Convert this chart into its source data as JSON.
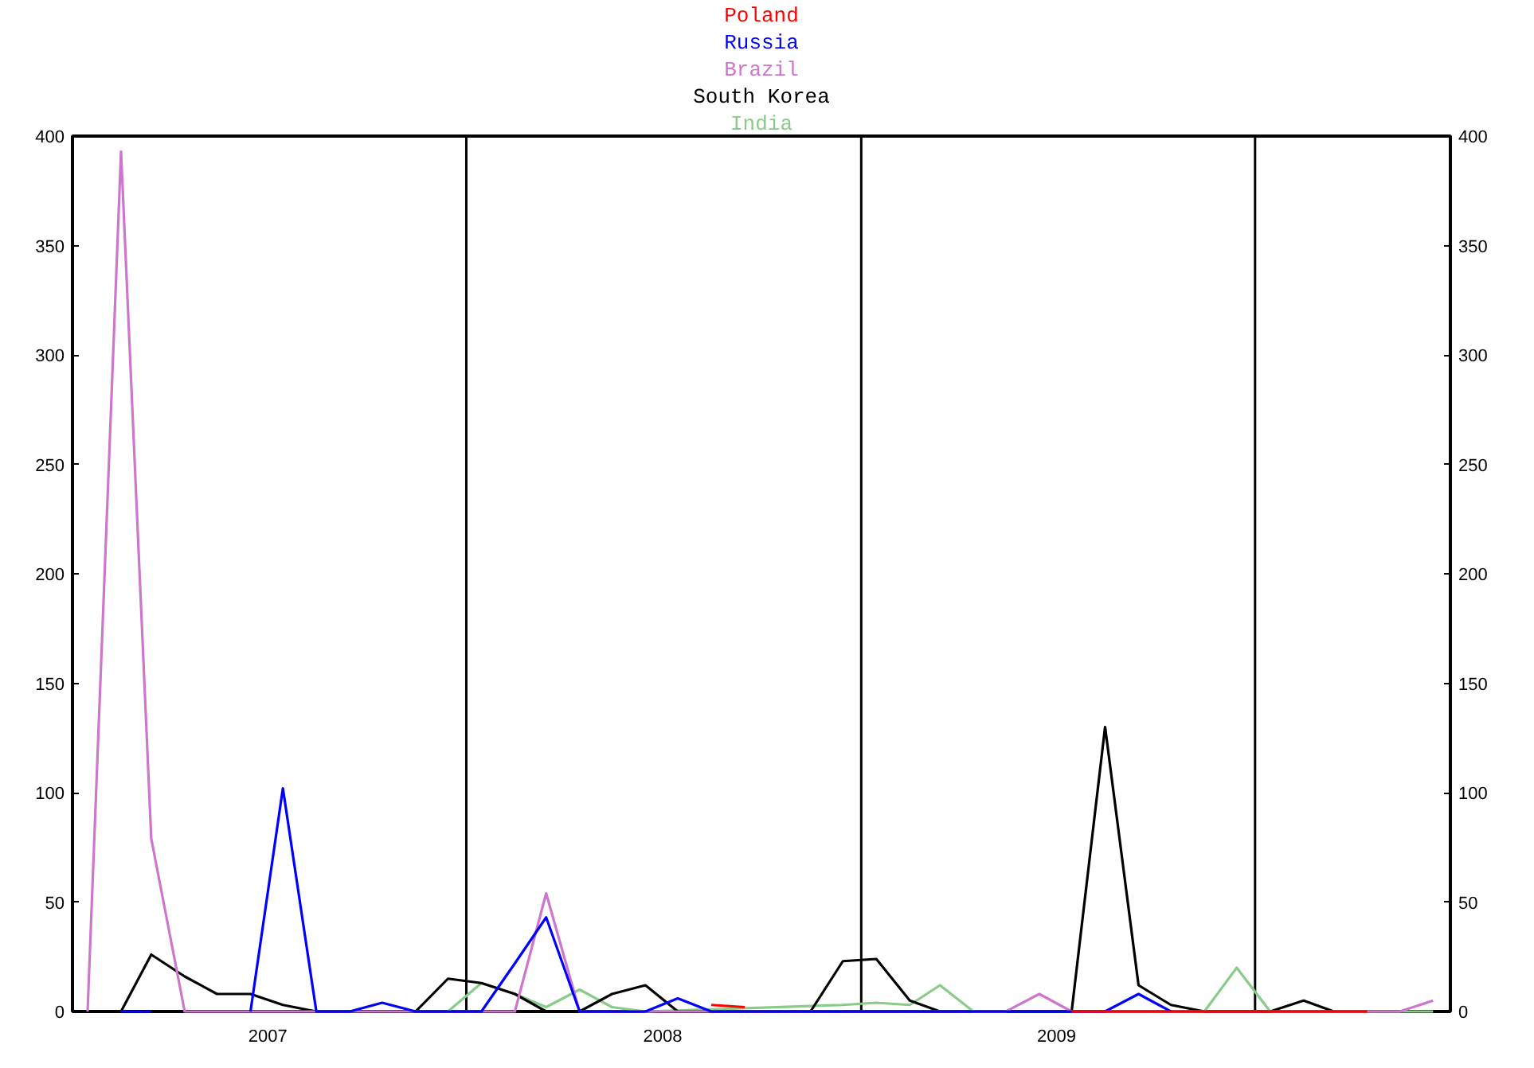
{
  "chart_data": {
    "type": "line",
    "xlim": [
      "2007-01-01",
      "2010-07-01"
    ],
    "xticks": [
      {
        "value": "2007-07-01",
        "label": "2007"
      },
      {
        "value": "2008-07-01",
        "label": "2008"
      },
      {
        "value": "2009-07-01",
        "label": "2009"
      }
    ],
    "ylim": [
      0,
      400
    ],
    "yticks": [
      0,
      50,
      100,
      150,
      200,
      250,
      300,
      350,
      400
    ],
    "y2lim": [
      0,
      400
    ],
    "y2ticks": [
      0,
      50,
      100,
      150,
      200,
      250,
      300,
      350,
      400
    ],
    "grid": false,
    "legend": "top",
    "marker": "none",
    "line_style": "solid",
    "ref_lines": [
      {
        "axis": "x",
        "value": "2008-01-01",
        "color": "#000000"
      },
      {
        "axis": "x",
        "value": "2009-01-01",
        "color": "#000000"
      },
      {
        "axis": "x",
        "value": "2010-01-01",
        "color": "#000000"
      }
    ],
    "series": [
      {
        "name": "Poland",
        "color": "#ff0000",
        "x": [
          "2008-08-15",
          "2008-09-15",
          "2008-10-15",
          "2009-07-15",
          "2009-08-15",
          "2010-03-15",
          "2010-04-15"
        ],
        "values": [
          3,
          2,
          null,
          0,
          0,
          0,
          0
        ]
      },
      {
        "name": "Russia",
        "color": "#0000ff",
        "x": [
          "2007-02-15",
          "2007-03-15",
          "2007-04-15",
          "2007-06-15",
          "2007-07-15",
          "2007-08-15",
          "2007-09-15",
          "2007-10-15",
          "2007-11-15",
          "2007-12-15",
          "2008-01-15",
          "2008-02-15",
          "2008-03-15",
          "2008-04-15",
          "2008-05-15",
          "2008-06-15",
          "2008-07-15",
          "2008-08-15",
          "2009-04-15",
          "2009-05-15",
          "2009-08-15",
          "2009-09-15",
          "2009-10-15"
        ],
        "values": [
          0,
          0,
          null,
          0,
          102,
          0,
          0,
          4,
          0,
          0,
          0,
          22,
          43,
          0,
          0,
          0,
          6,
          0,
          0,
          0,
          0,
          8,
          0
        ]
      },
      {
        "name": "Brazil",
        "color": "#cc77cc",
        "x": [
          "2007-01-15",
          "2007-02-15",
          "2007-03-15",
          "2007-04-15",
          "2008-02-15",
          "2008-03-15",
          "2008-04-15",
          "2009-05-15",
          "2009-06-15",
          "2009-07-15",
          "2010-05-15",
          "2010-06-15"
        ],
        "values": [
          0,
          393,
          79,
          0,
          0,
          54,
          0,
          0,
          8,
          0,
          0,
          5
        ]
      },
      {
        "name": "South Korea",
        "color": "#000000",
        "x": [
          "2007-02-15",
          "2007-03-15",
          "2007-04-15",
          "2007-05-15",
          "2007-06-15",
          "2007-07-15",
          "2007-08-15",
          "2007-09-15",
          "2007-10-15",
          "2007-11-15",
          "2007-12-15",
          "2008-01-15",
          "2008-02-15",
          "2008-03-15",
          "2008-04-15",
          "2008-05-15",
          "2008-06-15",
          "2008-07-15",
          "2008-08-15",
          "2008-09-15",
          "2008-10-15",
          "2008-11-15",
          "2008-12-15",
          "2009-01-15",
          "2009-02-15",
          "2009-03-15",
          "2009-04-15",
          "2009-05-15",
          "2009-06-15",
          "2009-07-15",
          "2009-08-15",
          "2009-09-15",
          "2009-10-15",
          "2009-11-15",
          "2009-12-15",
          "2010-01-15",
          "2010-02-15",
          "2010-03-15"
        ],
        "values": [
          0,
          26,
          16,
          8,
          8,
          3,
          0,
          0,
          0,
          0,
          15,
          13,
          8,
          0,
          0,
          8,
          12,
          0,
          0,
          0,
          null,
          0,
          23,
          24,
          5,
          0,
          0,
          0,
          0,
          0,
          130,
          12,
          3,
          0,
          0,
          0,
          5,
          0
        ]
      },
      {
        "name": "India",
        "color": "#88cc88",
        "x": [
          "2007-12-15",
          "2008-01-15",
          "2008-02-15",
          "2008-03-15",
          "2008-04-15",
          "2008-05-15",
          "2008-06-15",
          "2008-12-15",
          "2009-01-15",
          "2009-02-15",
          "2009-03-15",
          "2009-04-15",
          "2009-10-15",
          "2009-11-15",
          "2009-12-15",
          "2010-01-15",
          "2010-02-15",
          "2010-03-15",
          "2010-04-15",
          "2010-05-15",
          "2010-06-15"
        ],
        "values": [
          0,
          13,
          8,
          2,
          10,
          2,
          0,
          3,
          4,
          3,
          12,
          0,
          0,
          0,
          20,
          0,
          0,
          0,
          0,
          0,
          0
        ]
      }
    ]
  }
}
